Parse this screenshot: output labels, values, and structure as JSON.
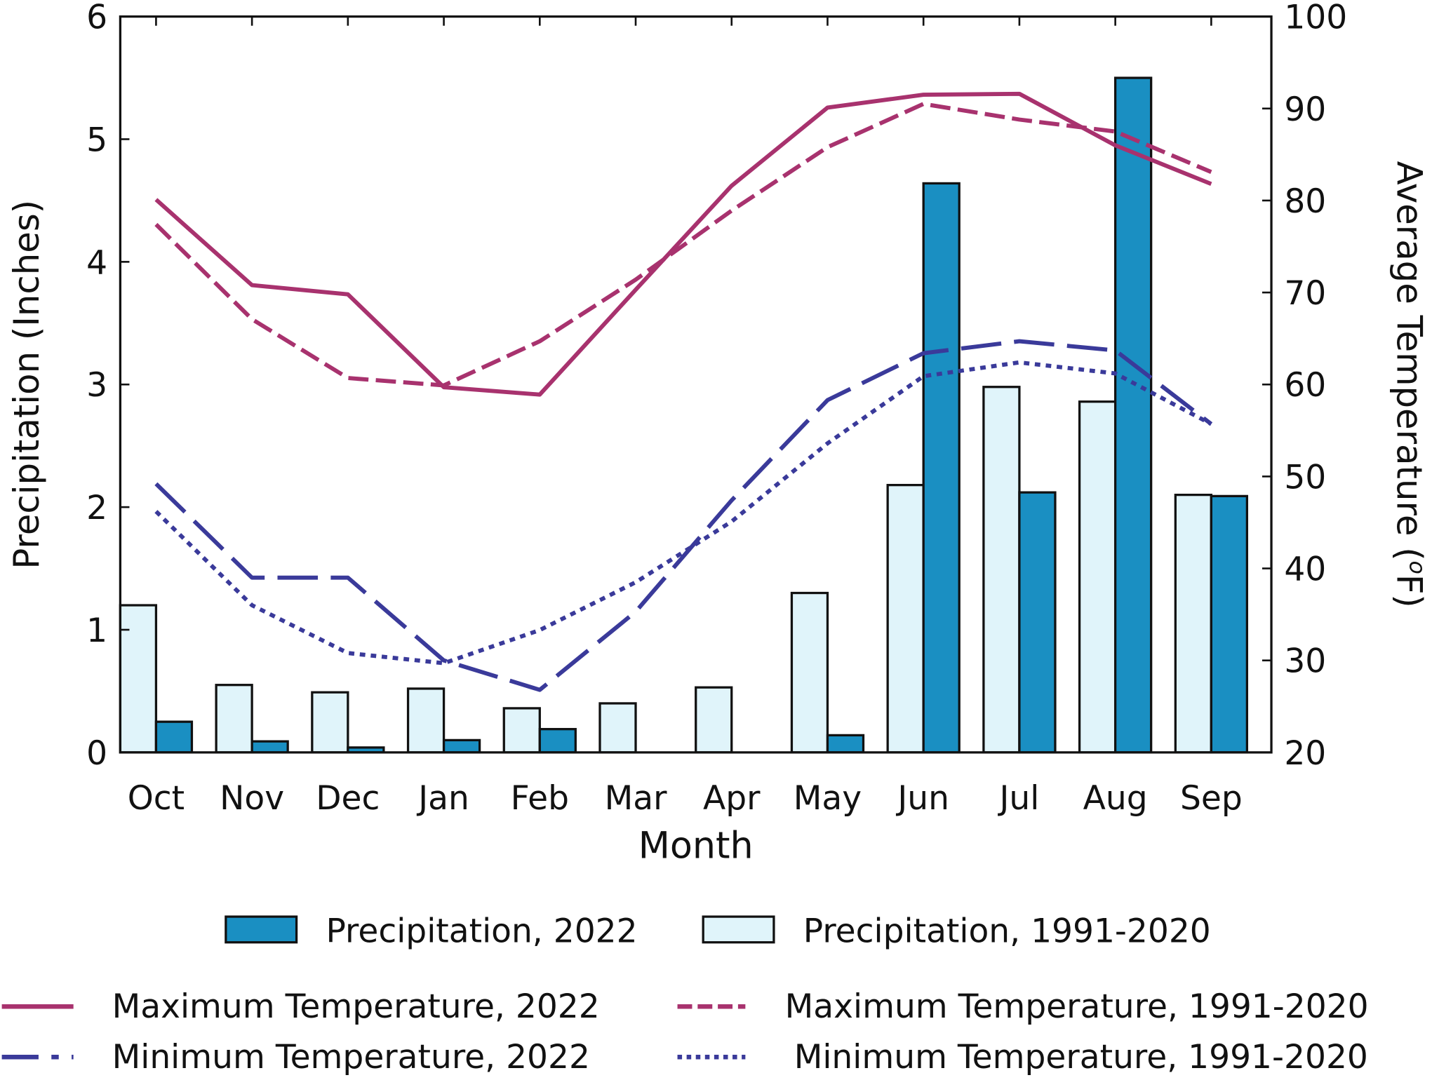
{
  "chart_data": {
    "type": "bar+line",
    "xlabel": "Month",
    "ylabel_left": "Precipitation (Inches)",
    "ylabel_right": "Average Temperature (",
    "ylabel_right_unit_sup": "o",
    "ylabel_right_unit": "F)",
    "categories": [
      "Oct",
      "Nov",
      "Dec",
      "Jan",
      "Feb",
      "Mar",
      "Apr",
      "May",
      "Jun",
      "Jul",
      "Aug",
      "Sep"
    ],
    "ylim_left": [
      0,
      6
    ],
    "yticks_left": [
      "0",
      "1",
      "2",
      "3",
      "4",
      "5",
      "6"
    ],
    "ylim_right": [
      20,
      100
    ],
    "yticks_right": [
      "20",
      "30",
      "40",
      "50",
      "60",
      "70",
      "80",
      "90",
      "100"
    ],
    "grid": false,
    "legend_placement": "bottom",
    "bar_series": [
      {
        "name": "Precipitation, 1991-2020",
        "color": "#e0f4fa",
        "values": [
          1.2,
          0.55,
          0.49,
          0.52,
          0.36,
          0.4,
          0.53,
          1.3,
          2.18,
          2.98,
          2.86,
          2.1
        ]
      },
      {
        "name": "Precipitation, 2022",
        "color": "#1a8fc2",
        "values": [
          0.25,
          0.09,
          0.04,
          0.1,
          0.19,
          0.0,
          0.0,
          0.14,
          4.64,
          2.12,
          5.5,
          2.09
        ]
      }
    ],
    "line_series": [
      {
        "name": "Maximum Temperature, 2022",
        "color": "#a8326e",
        "style": "solid",
        "values": [
          80.1,
          70.8,
          69.8,
          59.7,
          58.9,
          70.3,
          81.6,
          90.1,
          91.5,
          91.6,
          86.0,
          81.8
        ]
      },
      {
        "name": "Maximum Temperature, 1991-2020",
        "color": "#a8326e",
        "style": "dashed",
        "values": [
          77.4,
          67.1,
          60.7,
          59.9,
          64.7,
          71.4,
          78.9,
          85.8,
          90.5,
          88.8,
          87.5,
          83.1
        ]
      },
      {
        "name": "Minimum Temperature, 2022",
        "color": "#3a3a9a",
        "style": "long-dash",
        "values": [
          49.2,
          39.0,
          39.0,
          30.0,
          26.8,
          35.3,
          47.4,
          58.3,
          63.4,
          64.7,
          63.7,
          55.7
        ]
      },
      {
        "name": "Minimum Temperature, 1991-2020",
        "color": "#3a3a9a",
        "style": "dotted",
        "values": [
          46.2,
          36.0,
          30.8,
          29.7,
          33.3,
          38.5,
          45.1,
          53.6,
          60.9,
          62.4,
          61.2,
          55.7
        ]
      }
    ]
  }
}
